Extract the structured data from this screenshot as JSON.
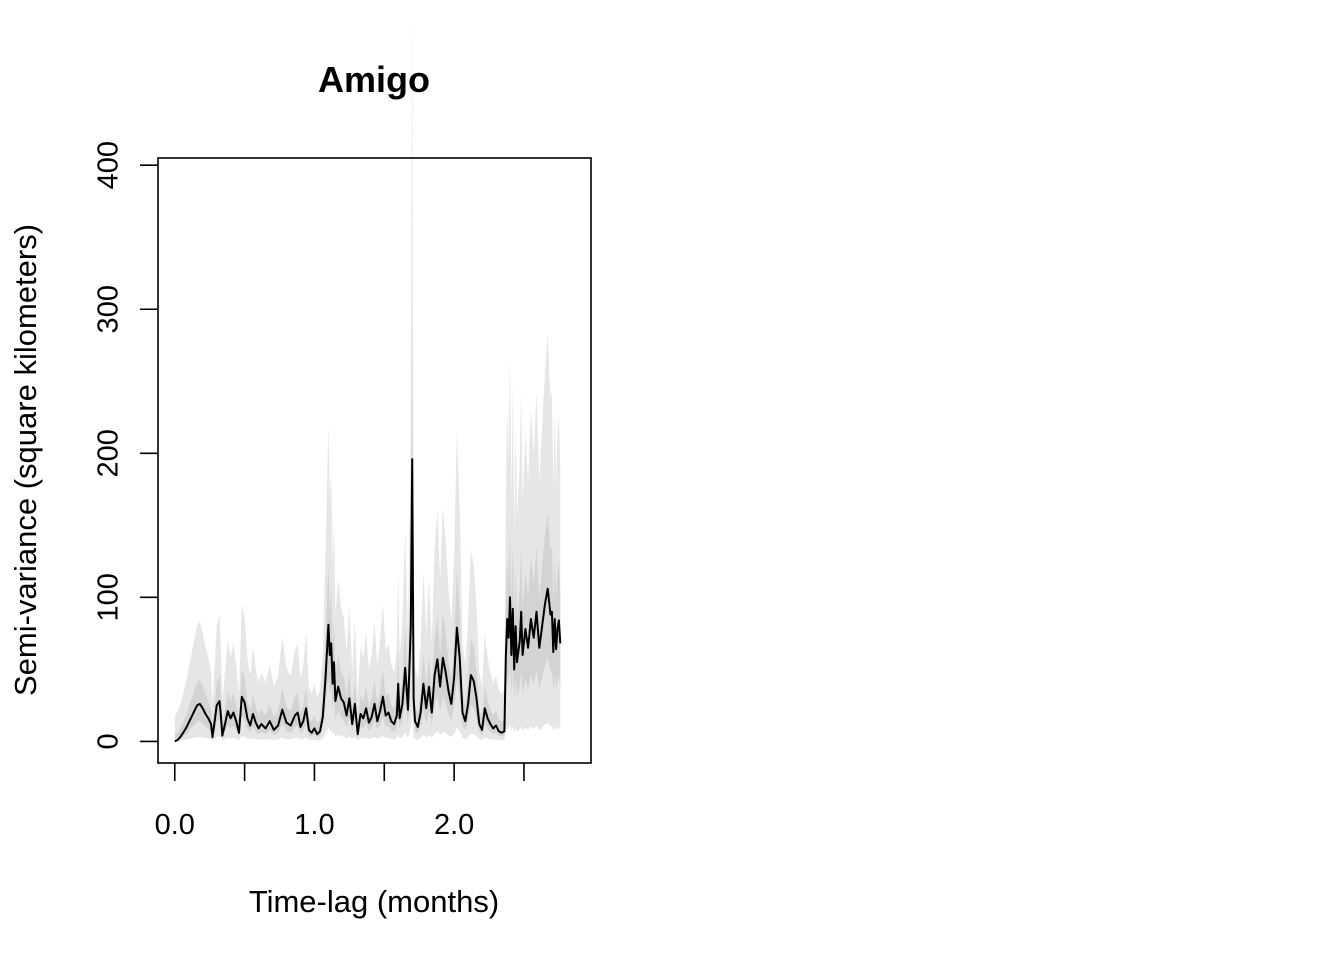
{
  "chart_data": {
    "type": "line",
    "title": "Amigo",
    "xlabel": "Time-lag (months)",
    "ylabel": "Semi-variance (square kilometers)",
    "xlim": [
      -0.12,
      2.98
    ],
    "ylim": [
      -15,
      405
    ],
    "x_ticks": [
      0.0,
      0.5,
      1.0,
      1.5,
      2.0,
      2.5
    ],
    "x_tick_labels": [
      "0.0",
      "",
      "1.0",
      "",
      "2.0",
      ""
    ],
    "y_ticks": [
      0,
      100,
      200,
      300,
      400
    ],
    "y_tick_labels": [
      "0",
      "100",
      "200",
      "300",
      "400"
    ],
    "grid": false,
    "legend": "none",
    "colors": {
      "line": "#000000",
      "outer_band": "#e6e6e6",
      "inner_band": "#d3d3d3",
      "axis": "#000000"
    },
    "series": [
      {
        "points": [
          [
            0.0,
            0
          ],
          [
            0.02,
            1
          ],
          [
            0.04,
            3
          ],
          [
            0.06,
            6
          ],
          [
            0.08,
            9
          ],
          [
            0.1,
            13
          ],
          [
            0.12,
            17
          ],
          [
            0.14,
            21
          ],
          [
            0.16,
            25
          ],
          [
            0.18,
            26
          ],
          [
            0.2,
            23
          ],
          [
            0.22,
            19
          ],
          [
            0.24,
            16
          ],
          [
            0.26,
            12
          ],
          [
            0.27,
            3
          ],
          [
            0.28,
            10
          ],
          [
            0.3,
            25
          ],
          [
            0.32,
            28
          ],
          [
            0.33,
            18
          ],
          [
            0.34,
            4
          ],
          [
            0.36,
            12
          ],
          [
            0.38,
            21
          ],
          [
            0.4,
            16
          ],
          [
            0.42,
            20
          ],
          [
            0.44,
            14
          ],
          [
            0.46,
            6
          ],
          [
            0.48,
            31
          ],
          [
            0.5,
            27
          ],
          [
            0.52,
            16
          ],
          [
            0.54,
            11
          ],
          [
            0.56,
            19
          ],
          [
            0.58,
            13
          ],
          [
            0.6,
            9
          ],
          [
            0.62,
            12
          ],
          [
            0.65,
            9
          ],
          [
            0.68,
            14
          ],
          [
            0.71,
            8
          ],
          [
            0.74,
            11
          ],
          [
            0.77,
            22
          ],
          [
            0.8,
            13
          ],
          [
            0.83,
            11
          ],
          [
            0.86,
            18
          ],
          [
            0.88,
            20
          ],
          [
            0.9,
            10
          ],
          [
            0.92,
            14
          ],
          [
            0.94,
            23
          ],
          [
            0.96,
            8
          ],
          [
            0.98,
            6
          ],
          [
            1.0,
            9
          ],
          [
            1.02,
            5
          ],
          [
            1.04,
            7
          ],
          [
            1.06,
            17
          ],
          [
            1.08,
            45
          ],
          [
            1.1,
            81
          ],
          [
            1.11,
            60
          ],
          [
            1.12,
            68
          ],
          [
            1.13,
            40
          ],
          [
            1.14,
            55
          ],
          [
            1.15,
            28
          ],
          [
            1.17,
            38
          ],
          [
            1.19,
            30
          ],
          [
            1.21,
            27
          ],
          [
            1.23,
            18
          ],
          [
            1.25,
            30
          ],
          [
            1.27,
            12
          ],
          [
            1.29,
            26
          ],
          [
            1.31,
            5
          ],
          [
            1.33,
            19
          ],
          [
            1.35,
            16
          ],
          [
            1.37,
            23
          ],
          [
            1.39,
            13
          ],
          [
            1.41,
            17
          ],
          [
            1.43,
            26
          ],
          [
            1.45,
            14
          ],
          [
            1.47,
            21
          ],
          [
            1.49,
            31
          ],
          [
            1.51,
            18
          ],
          [
            1.53,
            20
          ],
          [
            1.55,
            14
          ],
          [
            1.57,
            12
          ],
          [
            1.59,
            18
          ],
          [
            1.6,
            40
          ],
          [
            1.61,
            16
          ],
          [
            1.63,
            26
          ],
          [
            1.65,
            51
          ],
          [
            1.67,
            22
          ],
          [
            1.69,
            80
          ],
          [
            1.7,
            196
          ],
          [
            1.71,
            30
          ],
          [
            1.72,
            14
          ],
          [
            1.74,
            10
          ],
          [
            1.76,
            20
          ],
          [
            1.78,
            40
          ],
          [
            1.8,
            23
          ],
          [
            1.82,
            38
          ],
          [
            1.84,
            20
          ],
          [
            1.86,
            46
          ],
          [
            1.88,
            57
          ],
          [
            1.9,
            38
          ],
          [
            1.92,
            58
          ],
          [
            1.94,
            48
          ],
          [
            1.96,
            35
          ],
          [
            1.98,
            26
          ],
          [
            2.0,
            44
          ],
          [
            2.02,
            79
          ],
          [
            2.04,
            58
          ],
          [
            2.06,
            20
          ],
          [
            2.08,
            14
          ],
          [
            2.1,
            26
          ],
          [
            2.12,
            46
          ],
          [
            2.14,
            42
          ],
          [
            2.16,
            30
          ],
          [
            2.18,
            12
          ],
          [
            2.2,
            8
          ],
          [
            2.22,
            23
          ],
          [
            2.24,
            16
          ],
          [
            2.26,
            12
          ],
          [
            2.28,
            9
          ],
          [
            2.3,
            11
          ],
          [
            2.32,
            7
          ],
          [
            2.34,
            6
          ],
          [
            2.36,
            7
          ],
          [
            2.37,
            58
          ],
          [
            2.38,
            85
          ],
          [
            2.39,
            72
          ],
          [
            2.4,
            100
          ],
          [
            2.41,
            60
          ],
          [
            2.42,
            92
          ],
          [
            2.43,
            50
          ],
          [
            2.44,
            80
          ],
          [
            2.45,
            55
          ],
          [
            2.47,
            70
          ],
          [
            2.48,
            90
          ],
          [
            2.49,
            60
          ],
          [
            2.51,
            78
          ],
          [
            2.53,
            65
          ],
          [
            2.55,
            85
          ],
          [
            2.57,
            72
          ],
          [
            2.59,
            90
          ],
          [
            2.61,
            65
          ],
          [
            2.63,
            80
          ],
          [
            2.65,
            95
          ],
          [
            2.67,
            106
          ],
          [
            2.69,
            88
          ],
          [
            2.7,
            90
          ],
          [
            2.71,
            62
          ],
          [
            2.72,
            85
          ],
          [
            2.73,
            64
          ],
          [
            2.74,
            78
          ],
          [
            2.75,
            84
          ],
          [
            2.76,
            68
          ]
        ]
      }
    ]
  }
}
